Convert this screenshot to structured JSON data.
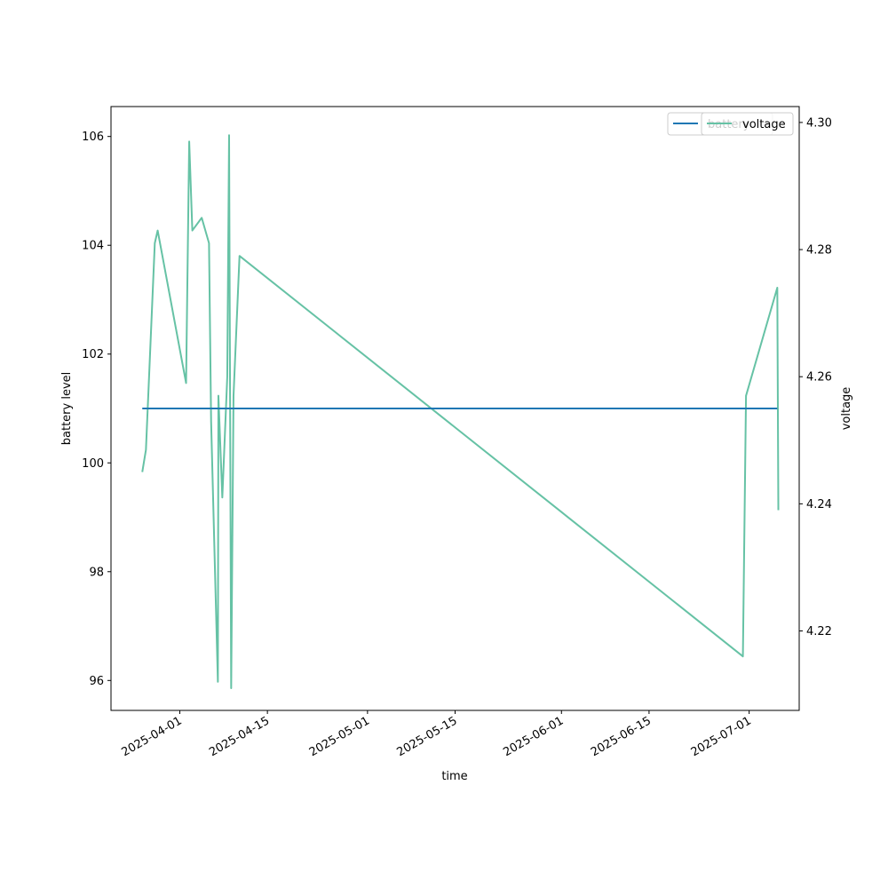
{
  "chart_data": {
    "type": "line",
    "title": "",
    "xlabel": "time",
    "ylabel_left": "battery level",
    "ylabel_right": "voltage",
    "x_tick_labels": [
      "2025-04-01",
      "2025-04-15",
      "2025-05-01",
      "2025-05-15",
      "2025-06-01",
      "2025-06-15",
      "2025-07-01"
    ],
    "y_left_ticks": [
      96,
      98,
      100,
      102,
      104,
      106
    ],
    "y_right_ticks": [
      "4.22",
      "4.24",
      "4.26",
      "4.28",
      "4.30"
    ],
    "x_range": [
      "2025-03-21",
      "2025-07-09"
    ],
    "y_left_range": [
      95.45,
      106.55
    ],
    "y_right_range": [
      4.2075,
      4.3025
    ],
    "grid": false,
    "legend_placement": "top-right",
    "series": [
      {
        "name": "battery",
        "axis": "left",
        "color": "#1f77b4",
        "points": [
          {
            "x": "2025-03-26",
            "y": 101
          },
          {
            "x": "2025-07-05 12:00",
            "y": 101
          }
        ]
      },
      {
        "name": "voltage",
        "axis": "right",
        "color": "#66c2a5",
        "points": [
          {
            "x": "2025-03-26",
            "y": 4.245
          },
          {
            "x": "2025-03-26 14:00",
            "y": 4.2485
          },
          {
            "x": "2025-03-28",
            "y": 4.281
          },
          {
            "x": "2025-03-28 11:00",
            "y": 4.283
          },
          {
            "x": "2025-04-02",
            "y": 4.259
          },
          {
            "x": "2025-04-02 12:00",
            "y": 4.297
          },
          {
            "x": "2025-04-03",
            "y": 4.283
          },
          {
            "x": "2025-04-04 12:00",
            "y": 4.285
          },
          {
            "x": "2025-04-05 16:00",
            "y": 4.281
          },
          {
            "x": "2025-04-06",
            "y": 4.253
          },
          {
            "x": "2025-04-07 02:00",
            "y": 4.212
          },
          {
            "x": "2025-04-07 04:00",
            "y": 4.257
          },
          {
            "x": "2025-04-07 19:00",
            "y": 4.241
          },
          {
            "x": "2025-04-08 14:00",
            "y": 4.26
          },
          {
            "x": "2025-04-08 21:00",
            "y": 4.298
          },
          {
            "x": "2025-04-09 05:00",
            "y": 4.211
          },
          {
            "x": "2025-04-09 14:00",
            "y": 4.257
          },
          {
            "x": "2025-04-10 13:00",
            "y": 4.279
          },
          {
            "x": "2025-06-30",
            "y": 4.216
          },
          {
            "x": "2025-06-30 12:00",
            "y": 4.257
          },
          {
            "x": "2025-07-05 12:00",
            "y": 4.274
          },
          {
            "x": "2025-07-05 16:00",
            "y": 4.239
          }
        ]
      }
    ]
  }
}
